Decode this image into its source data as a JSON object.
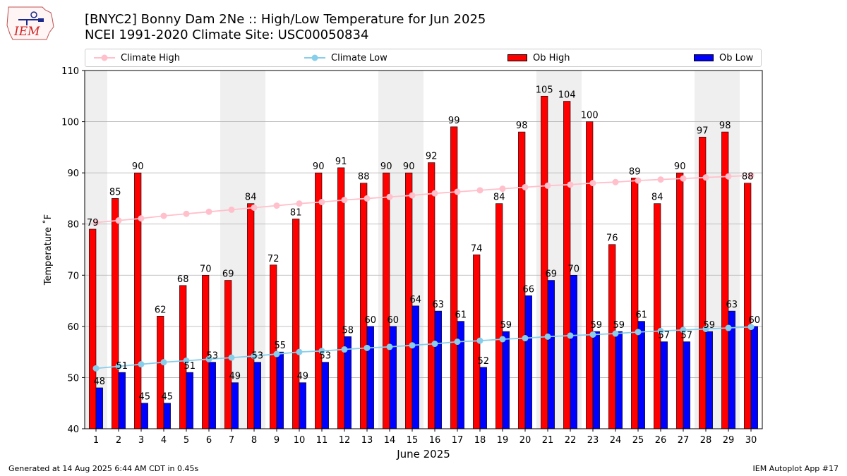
{
  "header": {
    "title_line1": "[BNYC2] Bonny Dam 2Ne :: High/Low Temperature for Jun 2025",
    "title_line2": "NCEI 1991-2020 Climate Site: USC00050834",
    "logo_text": "IEM"
  },
  "legend": {
    "climate_high": "Climate High",
    "climate_low": "Climate Low",
    "ob_high": "Ob High",
    "ob_low": "Ob Low"
  },
  "colors": {
    "ob_high": "#ff0000",
    "ob_low": "#0000ff",
    "climate_high": "#ffc0cb",
    "climate_low": "#87ceeb",
    "weekend_shade": "#efefef",
    "grid": "#b0b0b0"
  },
  "chart_data": {
    "type": "bar",
    "xlabel": "June 2025",
    "ylabel": "Temperature ˚F",
    "ylim": [
      40,
      110
    ],
    "yticks": [
      40,
      50,
      60,
      70,
      80,
      90,
      100,
      110
    ],
    "grid": "horizontal",
    "legend_position": "top",
    "categories": [
      "1",
      "2",
      "3",
      "4",
      "5",
      "6",
      "7",
      "8",
      "9",
      "10",
      "11",
      "12",
      "13",
      "14",
      "15",
      "16",
      "17",
      "18",
      "19",
      "20",
      "21",
      "22",
      "23",
      "24",
      "25",
      "26",
      "27",
      "28",
      "29",
      "30"
    ],
    "shaded_days": [
      1,
      7,
      8,
      14,
      15,
      21,
      22,
      28,
      29
    ],
    "series": [
      {
        "name": "Ob High",
        "kind": "bar",
        "values": [
          79,
          85,
          90,
          62,
          68,
          70,
          69,
          84,
          72,
          81,
          90,
          91,
          88,
          90,
          90,
          92,
          99,
          74,
          84,
          98,
          105,
          104,
          100,
          76,
          89,
          84,
          90,
          97,
          98,
          88
        ]
      },
      {
        "name": "Ob Low",
        "kind": "bar",
        "values": [
          48,
          51,
          45,
          45,
          51,
          53,
          49,
          53,
          55,
          49,
          53,
          58,
          60,
          60,
          64,
          63,
          61,
          52,
          59,
          66,
          69,
          70,
          59,
          59,
          61,
          57,
          57,
          59,
          63,
          60
        ]
      },
      {
        "name": "Climate High",
        "kind": "line",
        "values": [
          80.3,
          80.7,
          81.1,
          81.6,
          82.0,
          82.4,
          82.8,
          83.2,
          83.6,
          84.0,
          84.3,
          84.7,
          85.0,
          85.3,
          85.6,
          86.0,
          86.3,
          86.6,
          86.9,
          87.2,
          87.5,
          87.7,
          88.0,
          88.2,
          88.5,
          88.7,
          88.9,
          89.1,
          89.3,
          89.5
        ]
      },
      {
        "name": "Climate Low",
        "kind": "line",
        "values": [
          51.8,
          52.2,
          52.6,
          53.0,
          53.3,
          53.6,
          53.9,
          54.2,
          54.6,
          55.0,
          55.2,
          55.5,
          55.8,
          56.0,
          56.3,
          56.6,
          57.0,
          57.2,
          57.5,
          57.7,
          58.0,
          58.2,
          58.4,
          58.6,
          58.9,
          59.1,
          59.3,
          59.5,
          59.7,
          59.9
        ]
      }
    ]
  },
  "footer": {
    "left": "Generated at 14 Aug 2025 6:44 AM CDT in 0.45s",
    "right": "IEM Autoplot App #17"
  }
}
